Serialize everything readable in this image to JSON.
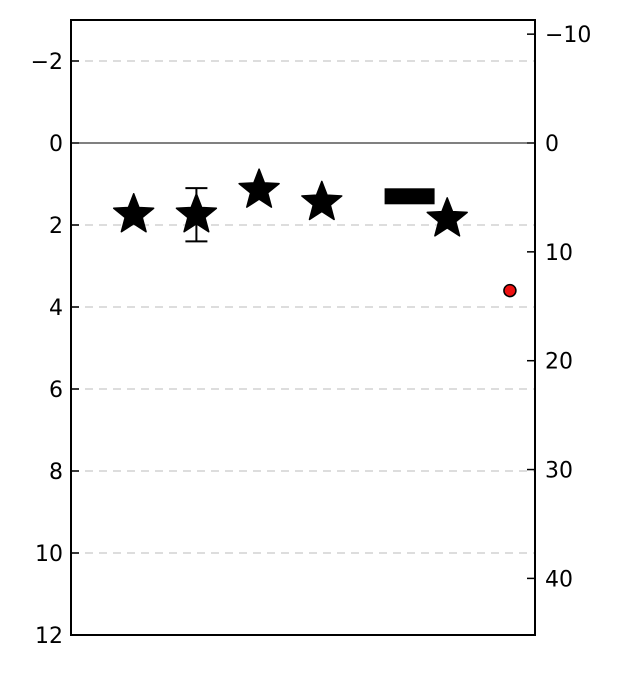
{
  "chart_data": {
    "type": "scatter",
    "y_axis_inverted": true,
    "ylim": [
      12,
      -3
    ],
    "yticks": [
      -2,
      0,
      2,
      4,
      6,
      8,
      10,
      12
    ],
    "ytick_labels": [
      "−2",
      "0",
      "2",
      "4",
      "6",
      "8",
      "10",
      "12"
    ],
    "y2lim": [
      45.2,
      -11.3
    ],
    "y2ticks": [
      -10,
      0,
      10,
      20,
      30,
      40
    ],
    "y2tick_labels": [
      "−10",
      "0",
      "10",
      "20",
      "30",
      "40"
    ],
    "xlim": [
      0,
      7.4
    ],
    "xticks_visible": false,
    "grid": "horizontal-dashed",
    "zero_line": true,
    "series": [
      {
        "marker": "star",
        "color": "#000000",
        "points": [
          {
            "x": 1,
            "y": 1.75
          },
          {
            "x": 2,
            "y": 1.75,
            "err_low": 1.1,
            "err_high": 2.4
          },
          {
            "x": 3,
            "y": 1.15
          },
          {
            "x": 4,
            "y": 1.45
          },
          {
            "x": 6,
            "y": 1.85
          }
        ]
      },
      {
        "marker": "bar",
        "color": "#000000",
        "points": [
          {
            "x": 5.4,
            "y": 1.3
          }
        ]
      },
      {
        "marker": "circle",
        "color": "#ee1111",
        "points": [
          {
            "x": 7,
            "y": 3.6
          }
        ]
      }
    ]
  }
}
